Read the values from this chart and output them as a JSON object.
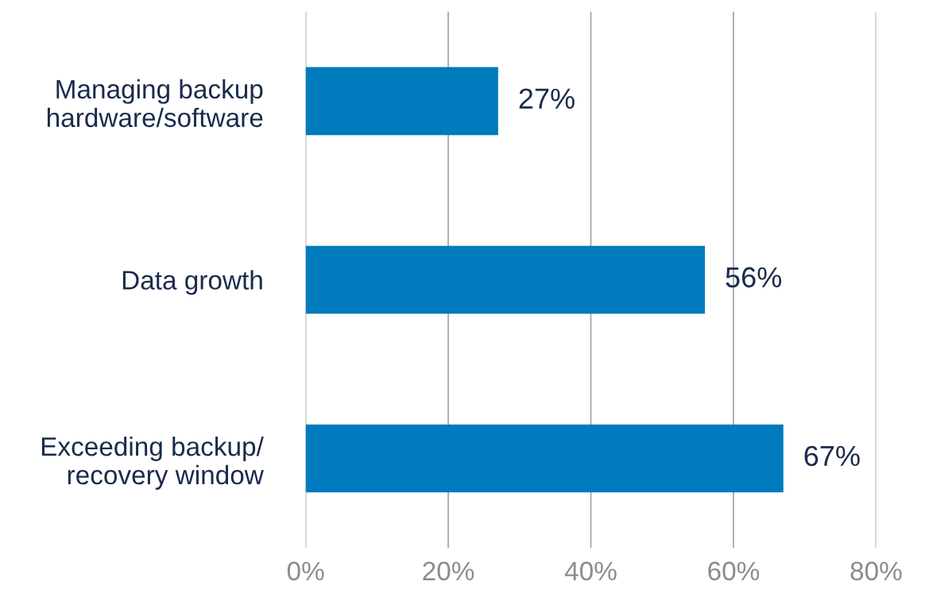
{
  "chart_data": {
    "type": "bar",
    "orientation": "horizontal",
    "categories": [
      "Managing backup\nhardware/software",
      "Data growth",
      "Exceeding backup/\nrecovery window"
    ],
    "values": [
      27,
      56,
      67
    ],
    "color": "#007bbd",
    "value_labels": [
      "27%",
      "56%",
      "67%"
    ],
    "xlim": [
      0,
      80
    ],
    "xticks": [
      {
        "value": 0,
        "label": "0%"
      },
      {
        "value": 20,
        "label": "20%"
      },
      {
        "value": 40,
        "label": "40%"
      },
      {
        "value": 60,
        "label": "60%"
      },
      {
        "value": 80,
        "label": "80%"
      }
    ],
    "grid": "x"
  }
}
